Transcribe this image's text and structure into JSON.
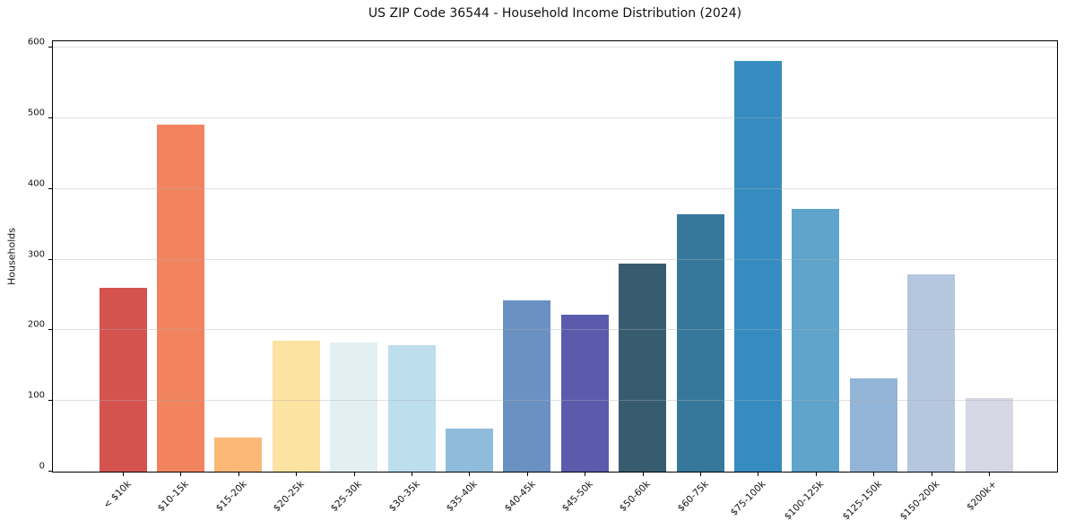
{
  "chart_data": {
    "type": "bar",
    "title": "US ZIP Code 36544 - Household Income Distribution (2024)",
    "xlabel": "",
    "ylabel": "Households",
    "categories": [
      "< $10k",
      "$10-15k",
      "$15-20k",
      "$20-25k",
      "$25-30k",
      "$30-35k",
      "$35-40k",
      "$40-45k",
      "$45-50k",
      "$50-60k",
      "$60-75k",
      "$75-100k",
      "$100-125k",
      "$125-150k",
      "$150-200k",
      "$200k+"
    ],
    "values": [
      260,
      492,
      48,
      185,
      183,
      179,
      61,
      242,
      222,
      295,
      365,
      582,
      372,
      132,
      279,
      104
    ],
    "bar_colors": [
      "#d5534e",
      "#f1835f",
      "#fbb876",
      "#fde3a1",
      "#e3f0f3",
      "#bcdeed",
      "#90bcdb",
      "#6b91c3",
      "#5a5bad",
      "#375c70",
      "#35789b",
      "#368cc0",
      "#5ea4cb",
      "#91b4d7",
      "#b5c6df",
      "#d6d7e4"
    ],
    "yticks": [
      0,
      100,
      200,
      300,
      400,
      500,
      600
    ],
    "ylim": [
      0,
      612
    ],
    "grid": "horizontal",
    "grid_color_rgba": "rgba(176,176,176,0.4)",
    "spine_color": "#000000",
    "background": "#ffffff",
    "legend": "none"
  }
}
